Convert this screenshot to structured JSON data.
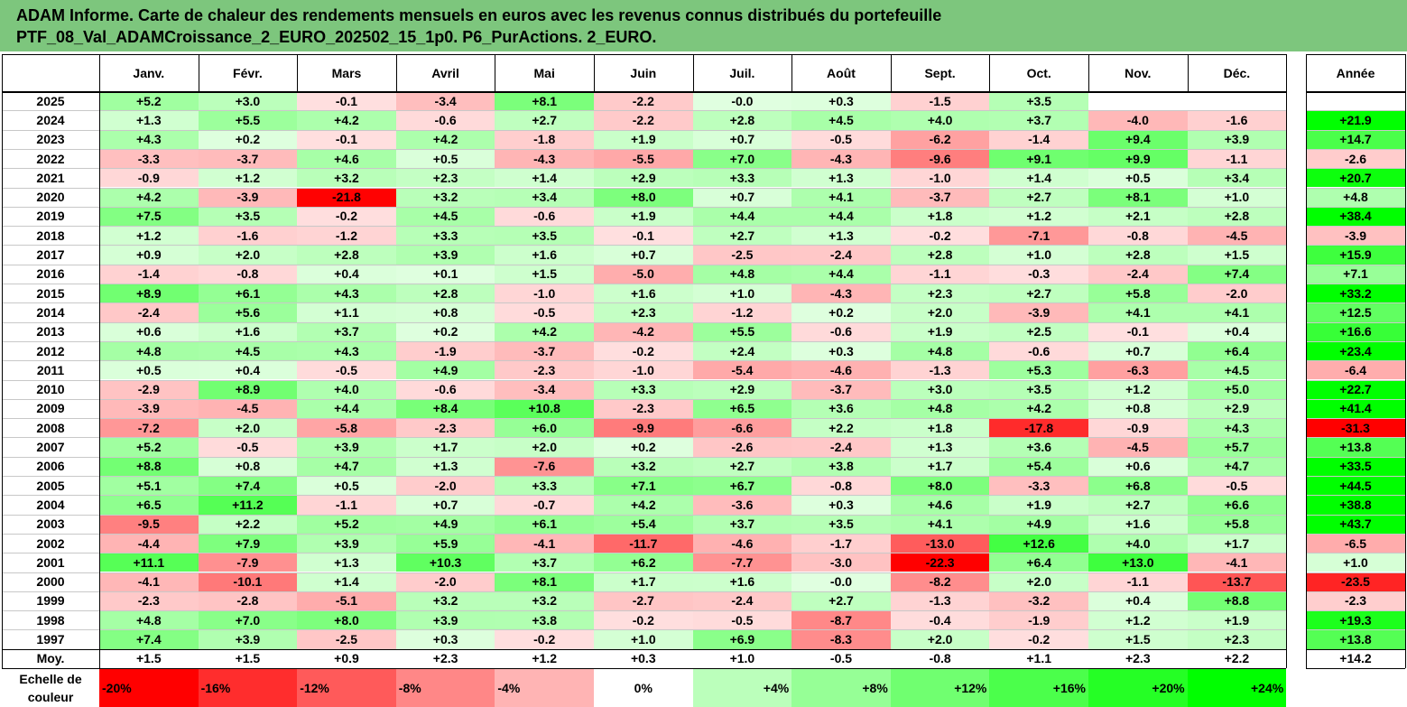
{
  "title": {
    "line1": "ADAM Informe. Carte de chaleur des rendements mensuels en euros avec les revenus connus distribués du portefeuille",
    "line2": "PTF_08_Val_ADAMCroissance_2_EURO_202502_15_1p0. P6_PurActions. 2_EURO."
  },
  "chart_data": {
    "type": "heatmap",
    "columns": [
      "Janv.",
      "Févr.",
      "Mars",
      "Avril",
      "Mai",
      "Juin",
      "Juil.",
      "Août",
      "Sept.",
      "Oct.",
      "Nov.",
      "Déc."
    ],
    "annual_label": "Année",
    "rows": [
      {
        "year": "2025",
        "values": [
          5.2,
          3.0,
          -0.1,
          -3.4,
          8.1,
          -2.2,
          -0.0,
          0.3,
          -1.5,
          3.5,
          null,
          null
        ],
        "annual": null
      },
      {
        "year": "2024",
        "values": [
          1.3,
          5.5,
          4.2,
          -0.6,
          2.7,
          -2.2,
          2.8,
          4.5,
          4.0,
          3.7,
          -4.0,
          -1.6
        ],
        "annual": 21.9
      },
      {
        "year": "2023",
        "values": [
          4.3,
          0.2,
          -0.1,
          4.2,
          -1.8,
          1.9,
          0.7,
          -0.5,
          -6.2,
          -1.4,
          9.4,
          3.9
        ],
        "annual": 14.7
      },
      {
        "year": "2022",
        "values": [
          -3.3,
          -3.7,
          4.6,
          0.5,
          -4.3,
          -5.5,
          7.0,
          -4.3,
          -9.6,
          9.1,
          9.9,
          -1.1
        ],
        "annual": -2.6
      },
      {
        "year": "2021",
        "values": [
          -0.9,
          1.2,
          3.2,
          2.3,
          1.4,
          2.9,
          3.3,
          1.3,
          -1.0,
          1.4,
          0.5,
          3.4
        ],
        "annual": 20.7
      },
      {
        "year": "2020",
        "values": [
          4.2,
          -3.9,
          -21.8,
          3.2,
          3.4,
          8.0,
          0.7,
          4.1,
          -3.7,
          2.7,
          8.1,
          1.0
        ],
        "annual": 4.8
      },
      {
        "year": "2019",
        "values": [
          7.5,
          3.5,
          -0.2,
          4.5,
          -0.6,
          1.9,
          4.4,
          4.4,
          1.8,
          1.2,
          2.1,
          2.8
        ],
        "annual": 38.4
      },
      {
        "year": "2018",
        "values": [
          1.2,
          -1.6,
          -1.2,
          3.3,
          3.5,
          -0.1,
          2.7,
          1.3,
          -0.2,
          -7.1,
          -0.8,
          -4.5
        ],
        "annual": -3.9
      },
      {
        "year": "2017",
        "values": [
          0.9,
          2.0,
          2.8,
          3.9,
          1.6,
          0.7,
          -2.5,
          -2.4,
          2.8,
          1.0,
          2.8,
          1.5
        ],
        "annual": 15.9
      },
      {
        "year": "2016",
        "values": [
          -1.4,
          -0.8,
          0.4,
          0.1,
          1.5,
          -5.0,
          4.8,
          4.4,
          -1.1,
          -0.3,
          -2.4,
          7.4
        ],
        "annual": 7.1
      },
      {
        "year": "2015",
        "values": [
          8.9,
          6.1,
          4.3,
          2.8,
          -1.0,
          1.6,
          1.0,
          -4.3,
          2.3,
          2.7,
          5.8,
          -2.0
        ],
        "annual": 33.2
      },
      {
        "year": "2014",
        "values": [
          -2.4,
          5.6,
          1.1,
          0.8,
          -0.5,
          2.3,
          -1.2,
          0.2,
          2.0,
          -3.9,
          4.1,
          4.1
        ],
        "annual": 12.5
      },
      {
        "year": "2013",
        "values": [
          0.6,
          1.6,
          3.7,
          0.2,
          4.2,
          -4.2,
          5.5,
          -0.6,
          1.9,
          2.5,
          -0.1,
          0.4
        ],
        "annual": 16.6
      },
      {
        "year": "2012",
        "values": [
          4.8,
          4.5,
          4.3,
          -1.9,
          -3.7,
          -0.2,
          2.4,
          0.3,
          4.8,
          -0.6,
          0.7,
          6.4
        ],
        "annual": 23.4
      },
      {
        "year": "2011",
        "values": [
          0.5,
          0.4,
          -0.5,
          4.9,
          -2.3,
          -1.0,
          -5.4,
          -4.6,
          -1.3,
          5.3,
          -6.3,
          4.5
        ],
        "annual": -6.4
      },
      {
        "year": "2010",
        "values": [
          -2.9,
          8.9,
          4.0,
          -0.6,
          -3.4,
          3.3,
          2.9,
          -3.7,
          3.0,
          3.5,
          1.2,
          5.0
        ],
        "annual": 22.7
      },
      {
        "year": "2009",
        "values": [
          -3.9,
          -4.5,
          4.4,
          8.4,
          10.8,
          -2.3,
          6.5,
          3.6,
          4.8,
          4.2,
          0.8,
          2.9
        ],
        "annual": 41.4
      },
      {
        "year": "2008",
        "values": [
          -7.2,
          2.0,
          -5.8,
          -2.3,
          6.0,
          -9.9,
          -6.6,
          2.2,
          1.8,
          -17.8,
          -0.9,
          4.3
        ],
        "annual": -31.3
      },
      {
        "year": "2007",
        "values": [
          5.2,
          -0.5,
          3.9,
          1.7,
          2.0,
          0.2,
          -2.6,
          -2.4,
          1.3,
          3.6,
          -4.5,
          5.7
        ],
        "annual": 13.8
      },
      {
        "year": "2006",
        "values": [
          8.8,
          0.8,
          4.7,
          1.3,
          -7.6,
          3.2,
          2.7,
          3.8,
          1.7,
          5.4,
          0.6,
          4.7
        ],
        "annual": 33.5
      },
      {
        "year": "2005",
        "values": [
          5.1,
          7.4,
          0.5,
          -2.0,
          3.3,
          7.1,
          6.7,
          -0.8,
          8.0,
          -3.3,
          6.8,
          -0.5
        ],
        "annual": 44.5
      },
      {
        "year": "2004",
        "values": [
          6.5,
          11.2,
          -1.1,
          0.7,
          -0.7,
          4.2,
          -3.6,
          0.3,
          4.6,
          1.9,
          2.7,
          6.6
        ],
        "annual": 38.8
      },
      {
        "year": "2003",
        "values": [
          -9.5,
          2.2,
          5.2,
          4.9,
          6.1,
          5.4,
          3.7,
          3.5,
          4.1,
          4.9,
          1.6,
          5.8
        ],
        "annual": 43.7
      },
      {
        "year": "2002",
        "values": [
          -4.4,
          7.9,
          3.9,
          5.9,
          -4.1,
          -11.7,
          -4.6,
          -1.7,
          -13.0,
          12.6,
          4.0,
          1.7
        ],
        "annual": -6.5
      },
      {
        "year": "2001",
        "values": [
          11.1,
          -7.9,
          1.3,
          10.3,
          3.7,
          6.2,
          -7.7,
          -3.0,
          -22.3,
          6.4,
          13.0,
          -4.1
        ],
        "annual": 1.0
      },
      {
        "year": "2000",
        "values": [
          -4.1,
          -10.1,
          1.4,
          -2.0,
          8.1,
          1.7,
          1.6,
          -0.0,
          -8.2,
          2.0,
          -1.1,
          -13.7
        ],
        "annual": -23.5
      },
      {
        "year": "1999",
        "values": [
          -2.3,
          -2.8,
          -5.1,
          3.2,
          3.2,
          -2.7,
          -2.4,
          2.7,
          -1.3,
          -3.2,
          0.4,
          8.8
        ],
        "annual": -2.3
      },
      {
        "year": "1998",
        "values": [
          4.8,
          7.0,
          8.0,
          3.9,
          3.8,
          -0.2,
          -0.5,
          -8.7,
          -0.4,
          -1.9,
          1.2,
          1.9
        ],
        "annual": 19.3
      },
      {
        "year": "1997",
        "values": [
          7.4,
          3.9,
          -2.5,
          0.3,
          -0.2,
          1.0,
          6.9,
          -8.3,
          2.0,
          -0.2,
          1.5,
          2.3
        ],
        "annual": 13.8
      }
    ],
    "average": {
      "label": "Moy.",
      "values": [
        1.5,
        1.5,
        0.9,
        2.3,
        1.2,
        0.3,
        1.0,
        -0.5,
        -0.8,
        1.1,
        2.3,
        2.2
      ],
      "annual": 14.2
    },
    "scale": {
      "label_line1": "Echelle de",
      "label_line2": "couleur",
      "steps": [
        {
          "label": "-20%",
          "value": -20
        },
        {
          "label": "-16%",
          "value": -16
        },
        {
          "label": "-12%",
          "value": -12
        },
        {
          "label": "-8%",
          "value": -8
        },
        {
          "label": "-4%",
          "value": -4
        },
        {
          "label": "0%",
          "value": 0
        },
        {
          "label": "+4%",
          "value": 4
        },
        {
          "label": "+8%",
          "value": 8
        },
        {
          "label": "+12%",
          "value": 12
        },
        {
          "label": "+16%",
          "value": 16
        },
        {
          "label": "+20%",
          "value": 20
        },
        {
          "label": "+24%",
          "value": 24
        }
      ]
    },
    "colors": {
      "negative_max": "#ff0000",
      "positive_max": "#00ff00",
      "neutral": "#ffffff",
      "title_bg": "#7dc67d"
    }
  }
}
